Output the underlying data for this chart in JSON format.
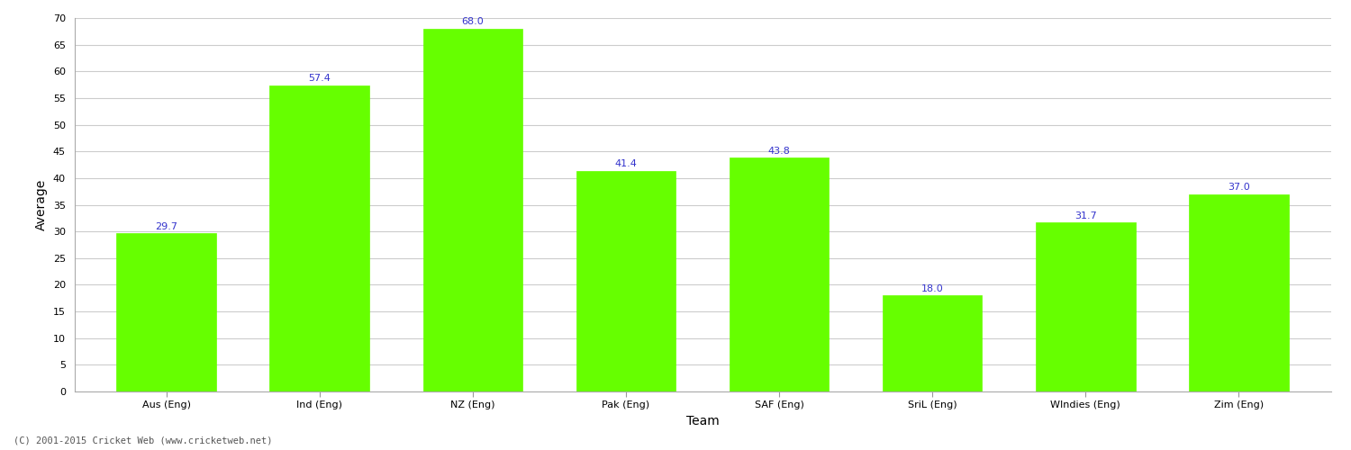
{
  "categories": [
    "Aus (Eng)",
    "Ind (Eng)",
    "NZ (Eng)",
    "Pak (Eng)",
    "SAF (Eng)",
    "SriL (Eng)",
    "WIndies (Eng)",
    "Zim (Eng)"
  ],
  "values": [
    29.7,
    57.4,
    68.0,
    41.4,
    43.8,
    18.0,
    31.7,
    37.0
  ],
  "bar_color": "#66ff00",
  "bar_edge_color": "#66ff00",
  "value_color": "#3333cc",
  "xlabel": "Team",
  "ylabel": "Average",
  "ylim": [
    0,
    70
  ],
  "yticks": [
    0,
    5,
    10,
    15,
    20,
    25,
    30,
    35,
    40,
    45,
    50,
    55,
    60,
    65,
    70
  ],
  "grid_color": "#cccccc",
  "background_color": "#ffffff",
  "footer": "(C) 2001-2015 Cricket Web (www.cricketweb.net)",
  "value_fontsize": 8,
  "axis_label_fontsize": 10,
  "tick_fontsize": 8,
  "bar_width": 0.65
}
